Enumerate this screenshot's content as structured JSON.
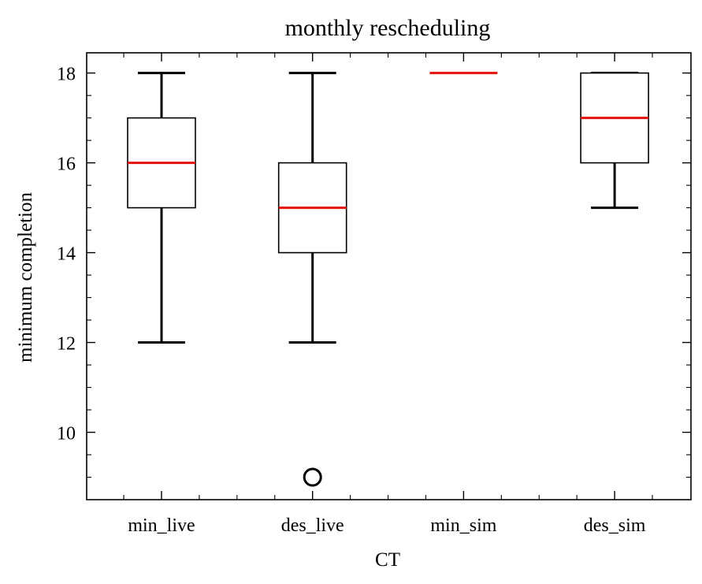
{
  "chart_data": {
    "type": "box",
    "title": "monthly rescheduling",
    "xlabel": "CT",
    "ylabel": "minimum completion",
    "ylim": [
      8.5,
      18.45
    ],
    "yticks": [
      10,
      12,
      14,
      16,
      18
    ],
    "grid": false,
    "median_color": "#e3120b",
    "box_color": "#000000",
    "categories": [
      "min_live",
      "des_live",
      "min_sim",
      "des_sim"
    ],
    "boxes": [
      {
        "category": "min_live",
        "whisker_low": 12,
        "q1": 15,
        "median": 16,
        "q3": 17,
        "whisker_high": 18,
        "outliers": []
      },
      {
        "category": "des_live",
        "whisker_low": 12,
        "q1": 14,
        "median": 15,
        "q3": 16,
        "whisker_high": 18,
        "outliers": [
          9
        ]
      },
      {
        "category": "min_sim",
        "whisker_low": 18,
        "q1": 18,
        "median": 18,
        "q3": 18,
        "whisker_high": 18,
        "outliers": []
      },
      {
        "category": "des_sim",
        "whisker_low": 15,
        "q1": 16,
        "median": 17,
        "q3": 18,
        "whisker_high": 18,
        "outliers": []
      }
    ]
  }
}
